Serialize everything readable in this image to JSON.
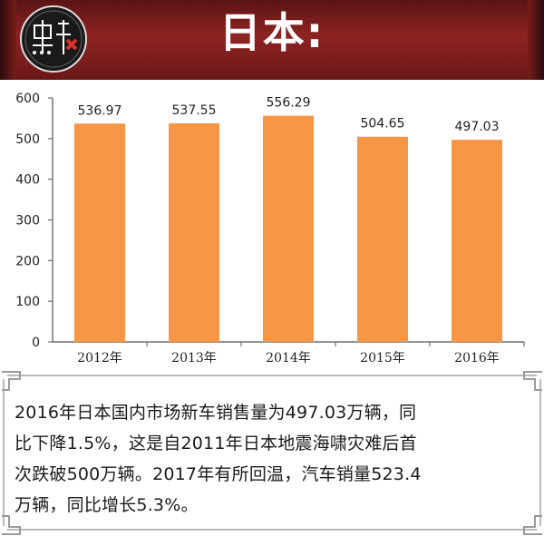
{
  "header": {
    "title": "日本:",
    "logo_icon": "brand-logo-icon"
  },
  "chart_data": {
    "type": "bar",
    "categories": [
      "2012年",
      "2013年",
      "2014年",
      "2015年",
      "2016年"
    ],
    "values": [
      536.97,
      537.55,
      556.29,
      504.65,
      497.03
    ],
    "data_labels": [
      "536.97",
      "537.55",
      "556.29",
      "504.65",
      "497.03"
    ],
    "y_ticks": [
      "0",
      "100",
      "200",
      "300",
      "400",
      "500",
      "600"
    ],
    "ylim": [
      0,
      600
    ],
    "title": "",
    "xlabel": "",
    "ylabel": "",
    "grid": false,
    "bar_color": "#f79646"
  },
  "caption": {
    "lines": [
      "2016年日本国内市场新车销售量为497.03万辆，同",
      "比下降1.5%，这是自2011年日本地震海啸灾难后首",
      "次跌破500万辆。2017年有所回温，汽车销量523.4",
      "万辆，同比增长5.3%。"
    ]
  },
  "colors": {
    "banner": "#8e2323",
    "bar": "#f79646",
    "text": "#1a1a1a"
  }
}
